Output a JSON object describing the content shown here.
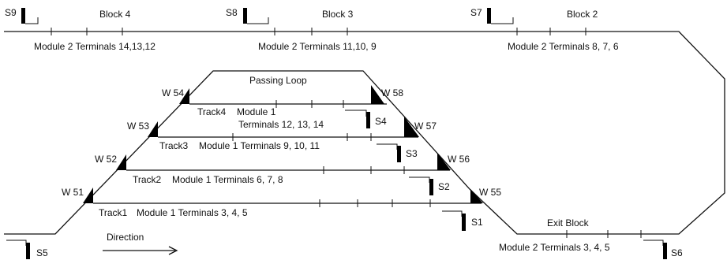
{
  "blocks": [
    {
      "label": "Block 4",
      "terminals": "Module 2 Terminals 14,13,12"
    },
    {
      "label": "Block 3",
      "terminals": "Module 2 Terminals 11,10, 9"
    },
    {
      "label": "Block 2",
      "terminals": "Module 2 Terminals 8, 7, 6"
    }
  ],
  "passing_loop": "Passing Loop",
  "tracks": [
    {
      "label": "Track4",
      "module": "Module 1",
      "terminals": "Terminals 12, 13, 14"
    },
    {
      "label": "Track3",
      "terminals": "Module 1 Terminals 9, 10, 11"
    },
    {
      "label": "Track2",
      "terminals": "Module 1 Terminals 6, 7, 8"
    },
    {
      "label": "Track1",
      "terminals": "Module 1 Terminals 3, 4, 5"
    }
  ],
  "exit_block": {
    "label": "Exit Block",
    "terminals": "Module 2 Terminals 3, 4, 5"
  },
  "signals": [
    "S1",
    "S2",
    "S3",
    "S4",
    "S5",
    "S6",
    "S7",
    "S8",
    "S9"
  ],
  "switches": [
    "W 51",
    "W 52",
    "W 53",
    "W 54",
    "W 55",
    "W 56",
    "W 57",
    "W 58"
  ],
  "direction": "Direction"
}
